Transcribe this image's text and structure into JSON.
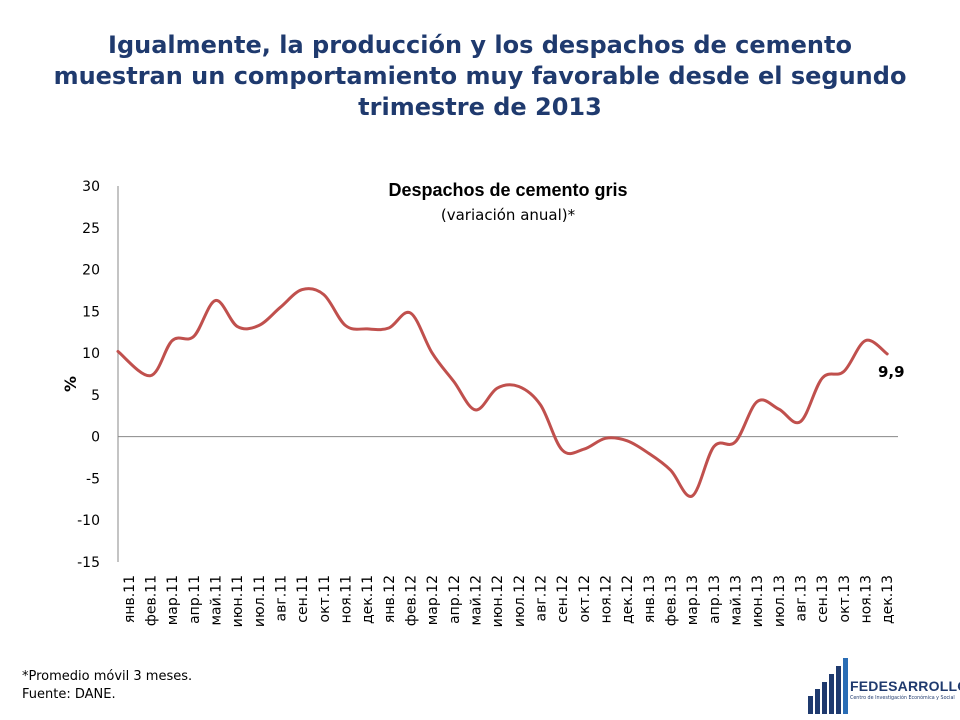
{
  "headline": "Igualmente, la producción y los despachos de cemento muestran un comportamiento muy favorable desde el segundo trimestre de 2013",
  "chart_data": {
    "type": "line",
    "title": "Despachos de cemento gris",
    "subtitle": "(variación anual)*",
    "ylabel": "%",
    "xlabel": "",
    "ylim": [
      -15,
      30
    ],
    "yticks": [
      30,
      25,
      20,
      15,
      10,
      5,
      0,
      -5,
      -10,
      -15
    ],
    "categories": [
      "янв.11",
      "фев.11",
      "мар.11",
      "апр.11",
      "май.11",
      "июн.11",
      "июл.11",
      "авг.11",
      "сен.11",
      "окт.11",
      "ноя.11",
      "дек.11",
      "янв.12",
      "фев.12",
      "мар.12",
      "апр.12",
      "май.12",
      "июн.12",
      "июл.12",
      "авг.12",
      "сен.12",
      "окт.12",
      "ноя.12",
      "дек.12",
      "янв.13",
      "фев.13",
      "мар.13",
      "апр.13",
      "май.13",
      "июн.13",
      "июл.13",
      "авг.13",
      "сен.13",
      "окт.13",
      "ноя.13",
      "дек.13"
    ],
    "series": [
      {
        "color": "#c0504d",
        "values": [
          10.2,
          7.3,
          11.5,
          12.0,
          16.3,
          13.2,
          13.3,
          15.5,
          17.6,
          17.0,
          13.3,
          12.9,
          13.0,
          14.8,
          10.0,
          6.6,
          3.2,
          5.8,
          6.0,
          3.8,
          -1.6,
          -1.5,
          -0.2,
          -0.5,
          -2.0,
          -4.0,
          -7.1,
          -1.2,
          -0.6,
          4.2,
          3.3,
          1.8,
          7.0,
          7.8,
          11.5,
          9.9
        ]
      }
    ],
    "annotation": "9,9",
    "grid": false,
    "legend": "none"
  },
  "footnote": {
    "line1": "*Promedio móvil 3 meses.",
    "line2": "Fuente:  DANE."
  },
  "logo": {
    "name": "FEDESARROLLO",
    "tagline": "Centro de Investigación Económica y Social",
    "color": "#1f3a6e"
  }
}
